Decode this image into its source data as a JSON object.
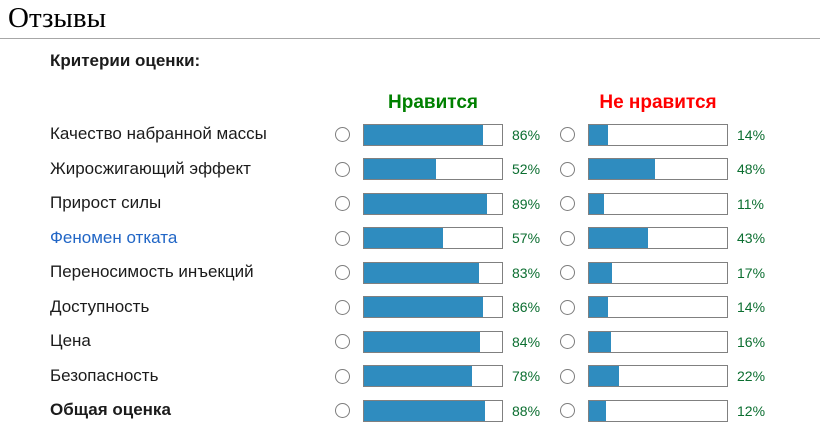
{
  "page": {
    "title": "Отзывы",
    "criteria_heading": "Критерии оценки:",
    "columns": {
      "like": "Нравится",
      "dislike": "Не нравится"
    }
  },
  "colors": {
    "bar_fill": "#2f8cbf",
    "bar_border": "#808080",
    "like_header": "#008000",
    "dislike_header": "#ff0000",
    "percent_text": "#0b6e30",
    "link": "#2166c6",
    "rule": "#a7a7a7"
  },
  "chart_data": {
    "type": "bar",
    "categories": [
      "Качество набранной массы",
      "Жиросжигающий эффект",
      "Прирост силы",
      "Феномен отката",
      "Переносимость инъекций",
      "Доступность",
      "Цена",
      "Безопасность",
      "Общая оценка"
    ],
    "series": [
      {
        "name": "Нравится",
        "values": [
          86,
          52,
          89,
          57,
          83,
          86,
          84,
          78,
          88
        ]
      },
      {
        "name": "Не нравится",
        "values": [
          14,
          48,
          11,
          43,
          17,
          14,
          16,
          22,
          12
        ]
      }
    ],
    "unit": "%",
    "title": "Критерии оценки",
    "xlim": [
      0,
      100
    ],
    "legend_position": "top"
  },
  "rows": [
    {
      "label": "Качество набранной массы",
      "style": "normal",
      "like": 86,
      "like_text": "86%",
      "dislike": 14,
      "dislike_text": "14%"
    },
    {
      "label": "Жиросжигающий эффект",
      "style": "normal",
      "like": 52,
      "like_text": "52%",
      "dislike": 48,
      "dislike_text": "48%"
    },
    {
      "label": "Прирост силы",
      "style": "normal",
      "like": 89,
      "like_text": "89%",
      "dislike": 11,
      "dislike_text": "11%"
    },
    {
      "label": "Феномен отката",
      "style": "link",
      "like": 57,
      "like_text": "57%",
      "dislike": 43,
      "dislike_text": "43%"
    },
    {
      "label": "Переносимость инъекций",
      "style": "normal",
      "like": 83,
      "like_text": "83%",
      "dislike": 17,
      "dislike_text": "17%"
    },
    {
      "label": "Доступность",
      "style": "normal",
      "like": 86,
      "like_text": "86%",
      "dislike": 14,
      "dislike_text": "14%"
    },
    {
      "label": "Цена",
      "style": "normal",
      "like": 84,
      "like_text": "84%",
      "dislike": 16,
      "dislike_text": "16%"
    },
    {
      "label": "Безопасность",
      "style": "normal",
      "like": 78,
      "like_text": "78%",
      "dislike": 22,
      "dislike_text": "22%"
    },
    {
      "label": "Общая оценка",
      "style": "bold",
      "like": 88,
      "like_text": "88%",
      "dislike": 12,
      "dislike_text": "12%"
    }
  ]
}
